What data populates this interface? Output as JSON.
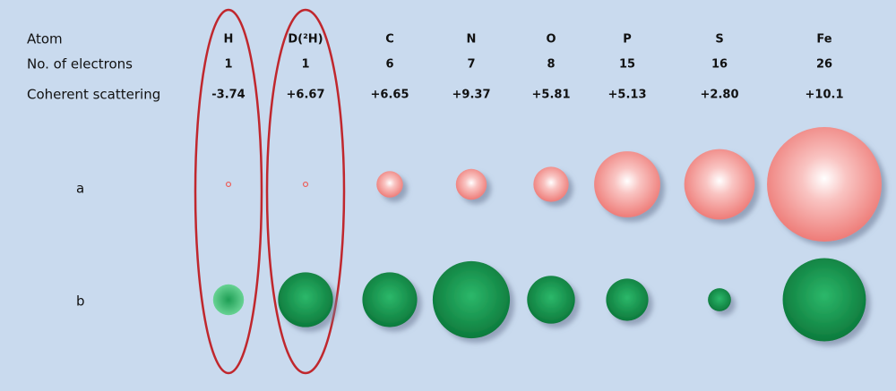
{
  "row_labels": {
    "atom": "Atom",
    "electrons": "No. of electrons",
    "scattering": "Coherent scattering",
    "a": "a",
    "b": "b"
  },
  "atoms": [
    {
      "symbol": "H",
      "electrons": 1,
      "scattering": {
        "value": -3.74,
        "label": "-3.74"
      }
    },
    {
      "symbol": "D(²H)",
      "electrons": 1,
      "scattering": {
        "value": 6.67,
        "label": "+6.67"
      }
    },
    {
      "symbol": "C",
      "electrons": 6,
      "scattering": {
        "value": 6.65,
        "label": "+6.65"
      }
    },
    {
      "symbol": "N",
      "electrons": 7,
      "scattering": {
        "value": 9.37,
        "label": "+9.37"
      }
    },
    {
      "symbol": "O",
      "electrons": 8,
      "scattering": {
        "value": 5.81,
        "label": "+5.81"
      }
    },
    {
      "symbol": "P",
      "electrons": 15,
      "scattering": {
        "value": 5.13,
        "label": "+5.13"
      }
    },
    {
      "symbol": "S",
      "electrons": 16,
      "scattering": {
        "value": 2.8,
        "label": "+2.80"
      }
    },
    {
      "symbol": "Fe",
      "electrons": 26,
      "scattering": {
        "value": 10.1,
        "label": "+10.1"
      }
    }
  ]
}
